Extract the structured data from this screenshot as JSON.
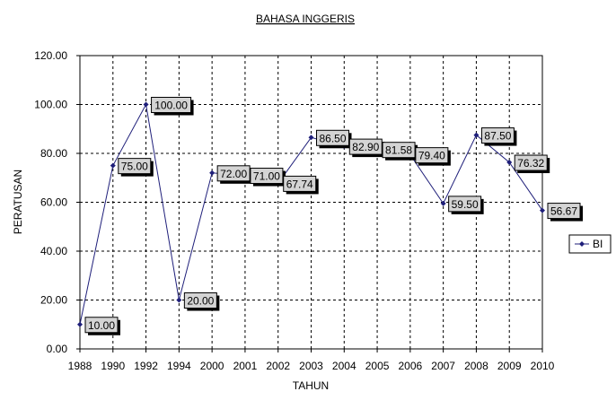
{
  "chart_data": {
    "type": "line",
    "title": "BAHASA INGGERIS",
    "xlabel": "TAHUN",
    "ylabel": "PERATUSAN",
    "categories": [
      "1988",
      "1990",
      "1992",
      "1994",
      "2000",
      "2001",
      "2002",
      "2003",
      "2004",
      "2005",
      "2006",
      "2007",
      "2008",
      "2009",
      "2010"
    ],
    "series": [
      {
        "name": "BI",
        "values": [
          10.0,
          75.0,
          100.0,
          20.0,
          72.0,
          71.0,
          67.74,
          86.5,
          82.9,
          81.58,
          79.4,
          59.5,
          87.5,
          76.32,
          56.67
        ],
        "labels": [
          "10.00",
          "75.00",
          "100.00",
          "20.00",
          "72.00",
          "71.00",
          "67.74",
          "86.50",
          "82.90",
          "81.58",
          "79.40",
          "59.50",
          "87.50",
          "76.32",
          "56.67"
        ]
      }
    ],
    "yticks": [
      "0.00",
      "20.00",
      "40.00",
      "60.00",
      "80.00",
      "100.00",
      "120.00"
    ],
    "ylim": [
      0,
      120
    ],
    "grid": true,
    "legend": "right",
    "colors": {
      "line": "#1f1f7a",
      "marker": "#1f1f7a",
      "label_bg": "#d4d4d4",
      "label_shadow": "#000000",
      "grid": "#000000"
    }
  }
}
